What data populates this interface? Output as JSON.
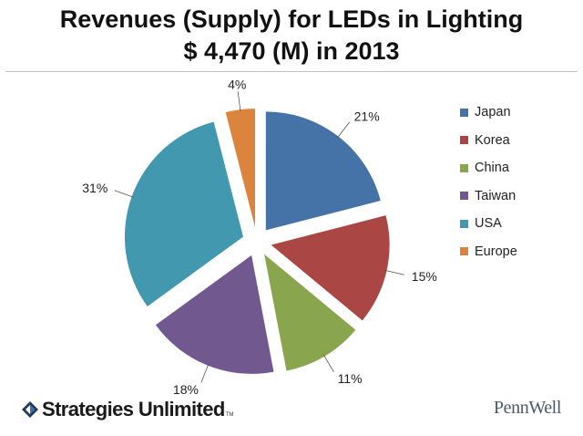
{
  "header": {
    "title_line1": "Revenues (Supply) for LEDs in Lighting",
    "title_line2": "$ 4,470 (M) in 2013"
  },
  "chart_data": {
    "type": "pie",
    "title": "Revenues (Supply) for LEDs in Lighting $ 4,470 (M) in 2013",
    "total": "$ 4,470 (M)",
    "year": "2013",
    "categories": [
      "Japan",
      "Korea",
      "China",
      "Taiwan",
      "USA",
      "Europe"
    ],
    "values": [
      21,
      15,
      11,
      18,
      31,
      4
    ],
    "value_labels": [
      "21%",
      "15%",
      "11%",
      "18%",
      "31%",
      "4%"
    ],
    "colors": [
      "#4572a7",
      "#aa4643",
      "#89a54e",
      "#71588f",
      "#4198af",
      "#db843d"
    ],
    "exploded": true,
    "legend_position": "right"
  },
  "footer": {
    "left_brand": "Strategies Unlimited",
    "left_tm": "TM",
    "right_brand": "PennWell"
  }
}
